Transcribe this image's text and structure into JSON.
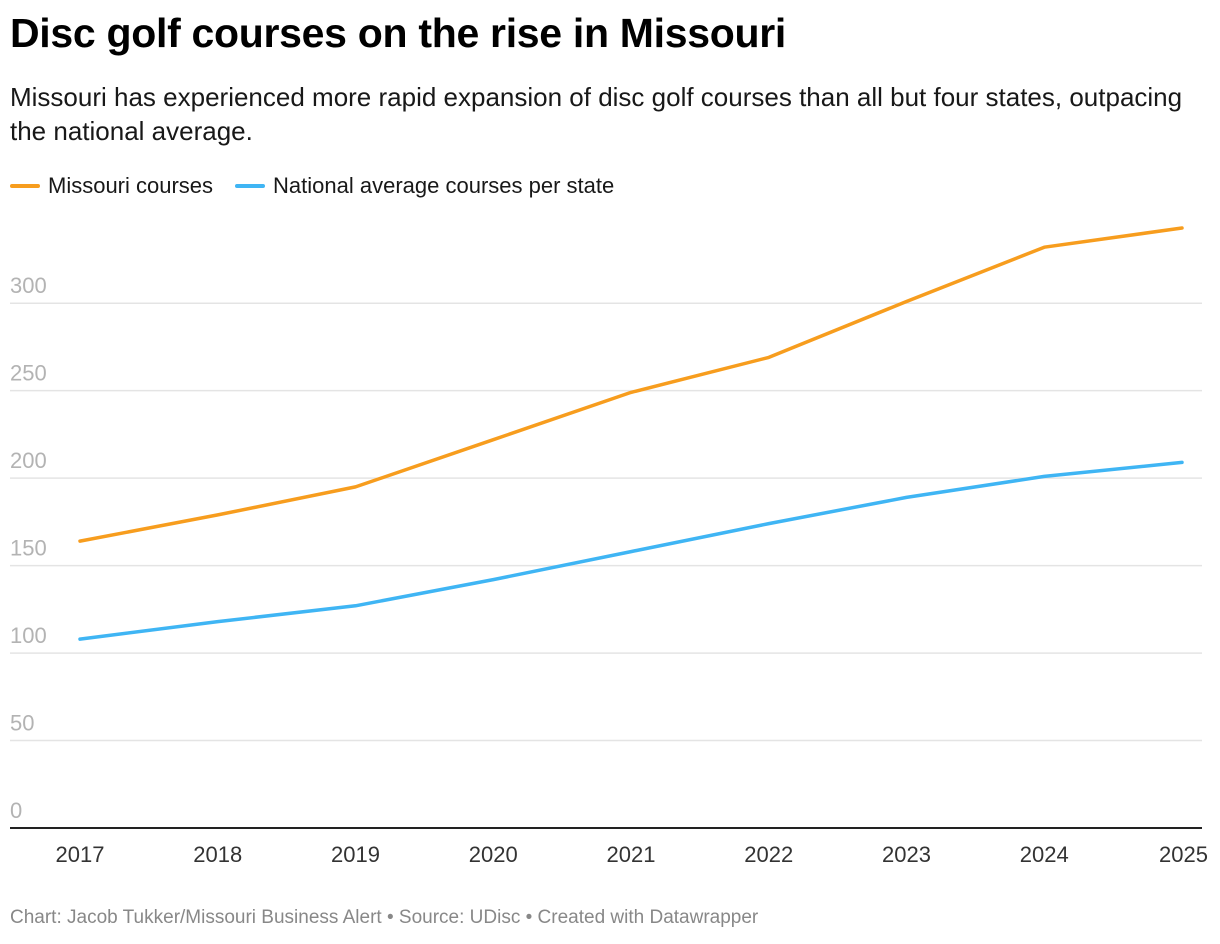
{
  "header": {
    "title": "Disc golf courses on the rise in Missouri",
    "subtitle": "Missouri has experienced more rapid expansion of disc golf courses than all but four states, outpacing the national average."
  },
  "legend": {
    "items": [
      {
        "label": "Missouri courses",
        "color": "#f79d1e"
      },
      {
        "label": "National average courses per state",
        "color": "#3fb5f4"
      }
    ],
    "placement": "top-left"
  },
  "footer": {
    "text": "Chart: Jacob Tukker/Missouri Business Alert • Source: UDisc • Created with Datawrapper"
  },
  "chart_data": {
    "type": "line",
    "x": [
      2017,
      2018,
      2019,
      2020,
      2021,
      2022,
      2023,
      2024,
      2025
    ],
    "series": [
      {
        "name": "Missouri courses",
        "color": "#f79d1e",
        "values": [
          164,
          179,
          195,
          222,
          249,
          269,
          301,
          332,
          343
        ]
      },
      {
        "name": "National average courses per state",
        "color": "#3fb5f4",
        "values": [
          108,
          118,
          127,
          142,
          158,
          174,
          189,
          201,
          209
        ]
      }
    ],
    "title": "Disc golf courses on the rise in Missouri",
    "xlabel": "",
    "ylabel": "",
    "ylim": [
      0,
      343
    ],
    "yticks": [
      0,
      50,
      100,
      150,
      200,
      250,
      300
    ],
    "xticks": [
      "2017",
      "2018",
      "2019",
      "2020",
      "2021",
      "2022",
      "2023",
      "2024",
      "2025"
    ],
    "grid": true,
    "legend": "top-left"
  }
}
